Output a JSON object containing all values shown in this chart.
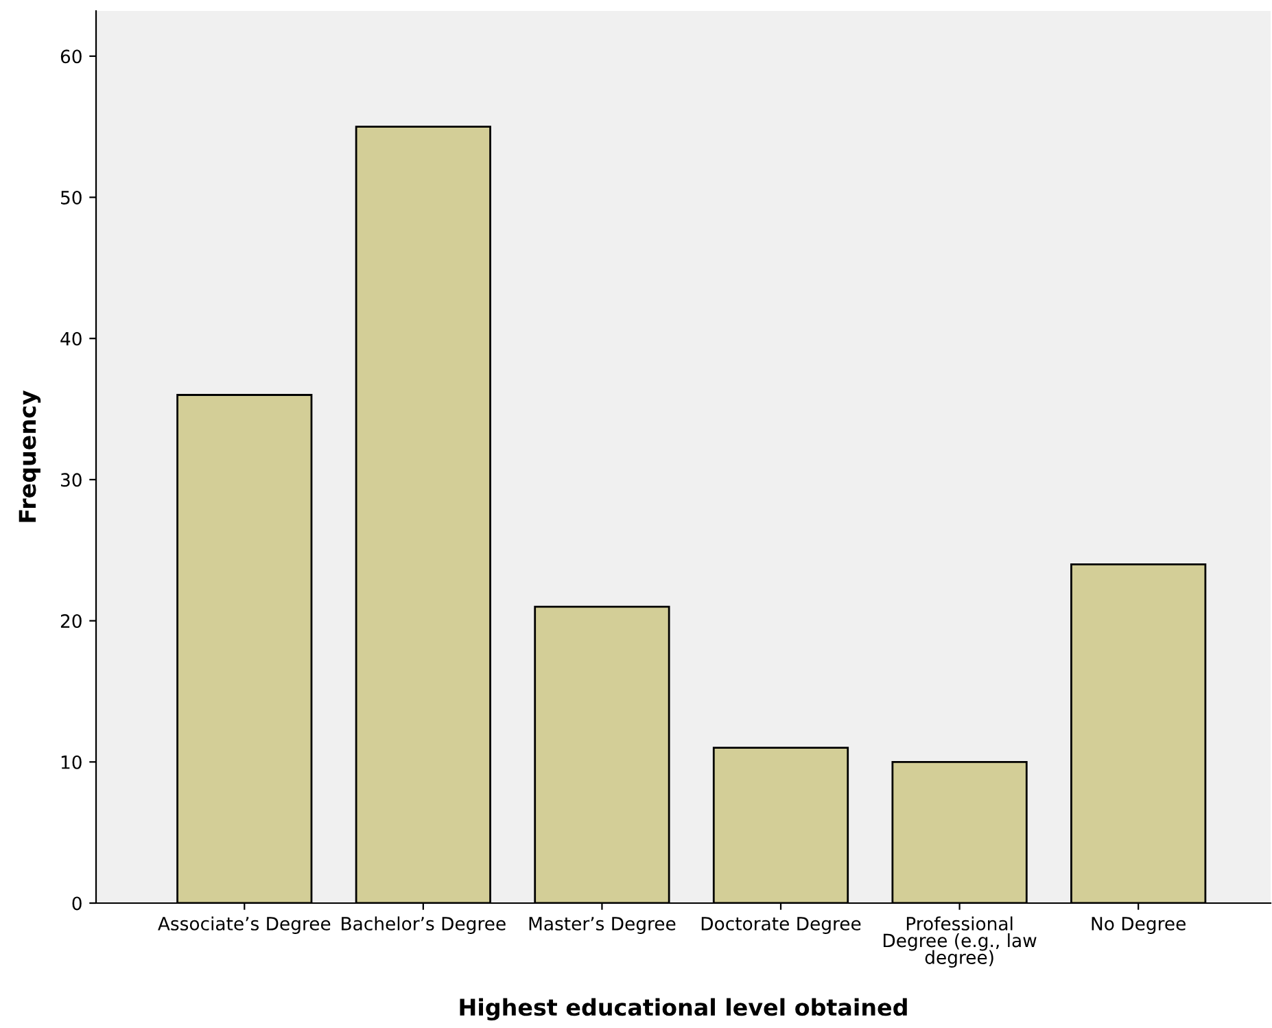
{
  "chart_data": {
    "type": "bar",
    "xlabel": "Highest educational level obtained",
    "ylabel": "Frequency",
    "categories": [
      "Associate’s Degree",
      "Bachelor’s Degree",
      "Master’s Degree",
      "Doctorate Degree",
      "Professional\nDegree (e.g., law\ndegree)",
      "No Degree"
    ],
    "values": [
      36,
      55,
      21,
      11,
      10,
      24
    ],
    "color": "#d3ce97",
    "ylim": [
      0,
      63.2
    ],
    "yticks": [
      0,
      10,
      20,
      30,
      40,
      50,
      60
    ],
    "grid": false
  }
}
